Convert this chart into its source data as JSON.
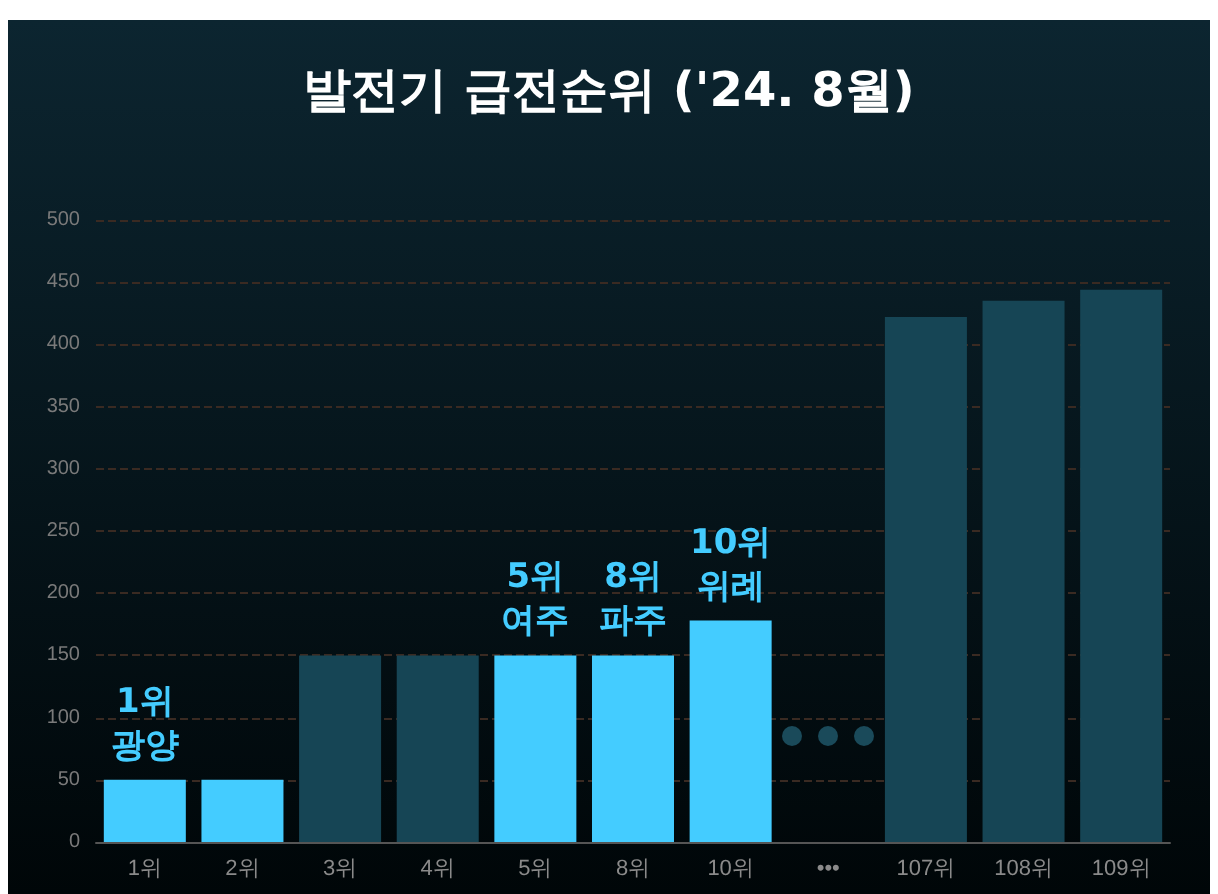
{
  "chart_data": {
    "type": "bar",
    "title": "발전기 급전순위 ('24. 8월)",
    "categories": [
      "1위",
      "2위",
      "3위",
      "4위",
      "5위",
      "8위",
      "10위",
      "•••",
      "107위",
      "108위",
      "109위"
    ],
    "values": [
      50,
      50,
      150,
      150,
      150,
      150,
      178,
      null,
      422,
      435,
      444
    ],
    "colors": [
      "#44ccff",
      "#44ccff",
      "#164555",
      "#164555",
      "#44ccff",
      "#44ccff",
      "#44ccff",
      "#164555",
      "#164555",
      "#164555",
      "#164555"
    ],
    "ylim": [
      0,
      500
    ],
    "yticks": [
      0,
      50,
      100,
      150,
      200,
      250,
      300,
      350,
      400,
      450,
      500
    ],
    "grid": "y",
    "annotations": [
      {
        "text": "1위\n광양",
        "x": "1위",
        "y": 50
      },
      {
        "text": "5위\n여주",
        "x": "5위",
        "y": 150
      },
      {
        "text": "8위\n파주",
        "x": "8위",
        "y": 150
      },
      {
        "text": "10위\n위례",
        "x": "10위",
        "y": 178
      }
    ]
  }
}
